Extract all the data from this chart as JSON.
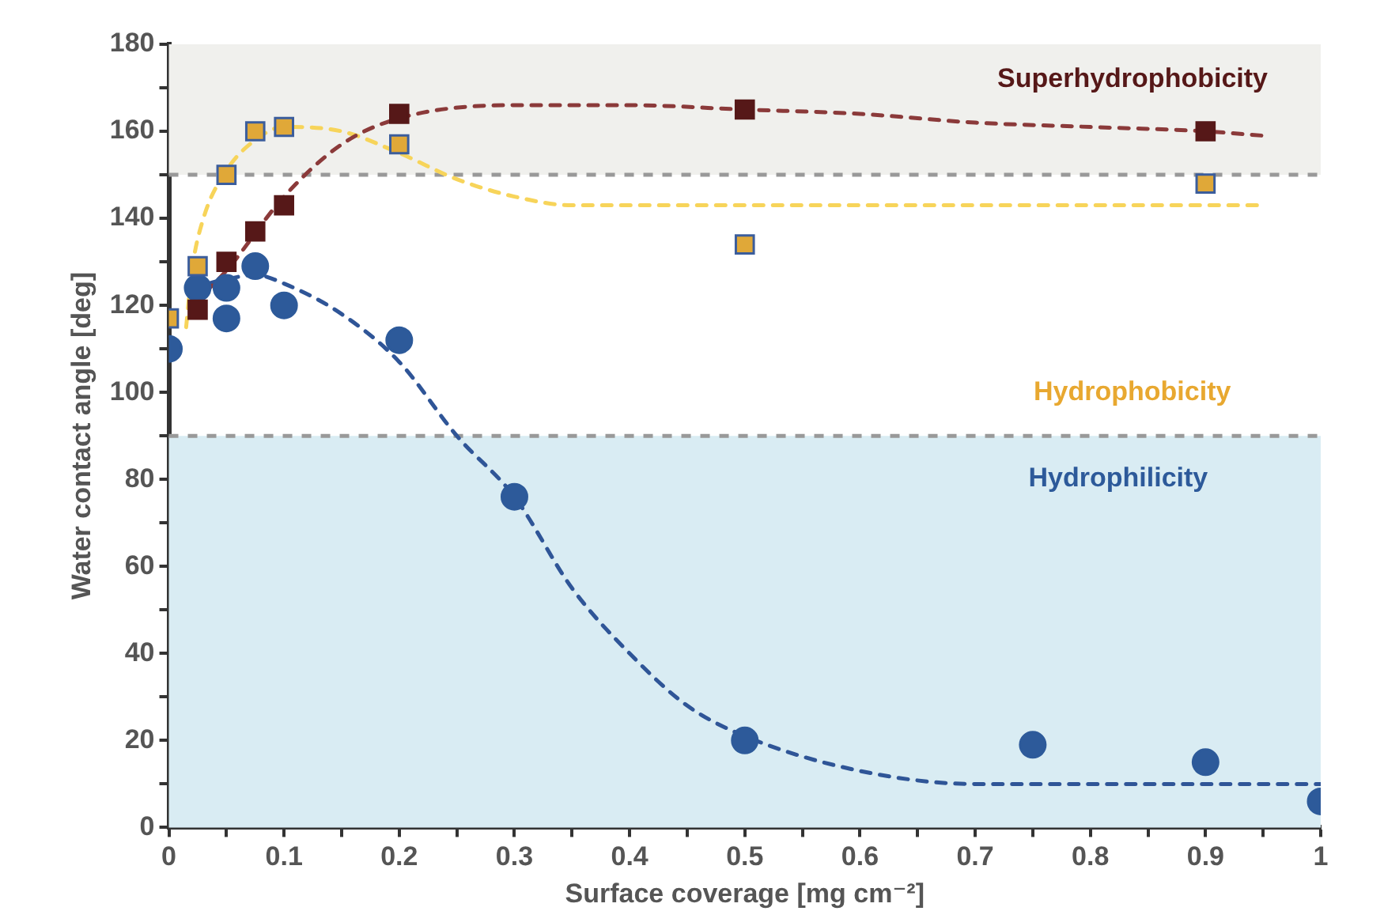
{
  "chart_data": {
    "type": "scatter",
    "xlabel": "Surface coverage [mg cm⁻²]",
    "ylabel": "Water contact angle [deg]",
    "xlim": [
      0,
      1
    ],
    "xticks": [
      0,
      {
        "value": 0.05,
        "label": null
      },
      0.1,
      {
        "value": 0.15,
        "label": null
      },
      0.2,
      {
        "value": 0.25,
        "label": null
      },
      0.3,
      {
        "value": 0.35,
        "label": null
      },
      0.4,
      {
        "value": 0.45,
        "label": null
      },
      0.5,
      {
        "value": 0.55,
        "label": null
      },
      0.6,
      {
        "value": 0.65,
        "label": null
      },
      0.7,
      {
        "value": 0.75,
        "label": null
      },
      0.8,
      {
        "value": 0.85,
        "label": null
      },
      0.9,
      {
        "value": 0.95,
        "label": null
      },
      1
    ],
    "ylim": [
      0,
      180
    ],
    "yticks": [
      0,
      {
        "value": 10,
        "label": null
      },
      20,
      {
        "value": 30,
        "label": null
      },
      40,
      {
        "value": 50,
        "label": null
      },
      60,
      {
        "value": 70,
        "label": null
      },
      80,
      {
        "value": 90,
        "label": null
      },
      100,
      {
        "value": 110,
        "label": null
      },
      120,
      {
        "value": 130,
        "label": null
      },
      140,
      {
        "value": 150,
        "label": null
      },
      160,
      {
        "value": 170,
        "label": null
      },
      180
    ],
    "grid": false,
    "legend": false,
    "series": [
      {
        "type": "scatter",
        "marker": "square",
        "color": "#561818",
        "x": [
          0.025,
          0.05,
          0.075,
          0.1,
          0.2,
          0.5,
          0.9
        ],
        "values": [
          119,
          130,
          137,
          143,
          164,
          165,
          160
        ]
      },
      {
        "type": "scatter",
        "marker": "square",
        "color": "#e0a838",
        "x": [
          0,
          0.025,
          0.05,
          0.075,
          0.1,
          0.2,
          0.5,
          0.9
        ],
        "values": [
          117,
          129,
          150,
          160,
          161,
          157,
          134,
          148
        ]
      },
      {
        "type": "scatter",
        "marker": "circle",
        "color": "#2d5a9a",
        "x": [
          0,
          0.025,
          0.05,
          0.05,
          0.075,
          0.1,
          0.2,
          0.3,
          0.5,
          0.75,
          0.9,
          1
        ],
        "values": [
          110,
          124,
          124,
          117,
          129,
          120,
          112,
          76,
          20,
          19,
          15,
          6
        ]
      },
      {
        "type": "line",
        "line_style": "dashed",
        "marker": "none",
        "color": "#8b3a3a",
        "x": [
          0.02,
          0.05,
          0.1,
          0.15,
          0.2,
          0.3,
          0.4,
          0.5,
          0.6,
          0.7,
          0.8,
          0.9,
          0.95
        ],
        "values": [
          120,
          128,
          145,
          157,
          163,
          166,
          166,
          165,
          164,
          162,
          161,
          160,
          159
        ]
      },
      {
        "type": "line",
        "line_style": "dashed",
        "marker": "none",
        "color": "#f7d45a",
        "x": [
          0.015,
          0.02,
          0.03,
          0.05,
          0.075,
          0.1,
          0.15,
          0.2,
          0.25,
          0.3,
          0.35,
          0.4,
          0.5,
          0.6,
          0.7,
          0.8,
          0.9,
          0.95
        ],
        "values": [
          115,
          128,
          140,
          151,
          158,
          161,
          160,
          155,
          149,
          145,
          143,
          143,
          143,
          143,
          143,
          143,
          143,
          143
        ]
      },
      {
        "type": "line",
        "line_style": "dashed",
        "marker": "none",
        "color": "#2f5597",
        "x": [
          0.02,
          0.05,
          0.075,
          0.1,
          0.15,
          0.2,
          0.25,
          0.3,
          0.35,
          0.4,
          0.45,
          0.5,
          0.6,
          0.7,
          0.8,
          0.9,
          1
        ],
        "values": [
          124,
          126,
          127,
          125,
          118,
          107,
          90,
          76,
          55,
          40,
          28,
          21,
          13,
          10,
          10,
          10,
          10
        ]
      }
    ],
    "bands": [
      {
        "axis": "y",
        "from": 150,
        "to": 180,
        "color": "#f0f0ed"
      },
      {
        "axis": "y",
        "from": 0,
        "to": 90,
        "color": "#d9ecf3"
      }
    ],
    "ref_lines": [
      {
        "axis": "y",
        "value": 150,
        "color": "#999999",
        "line_style": "dashed"
      },
      {
        "axis": "y",
        "value": 90,
        "color": "#999999",
        "line_style": "dashed"
      }
    ],
    "annotations": [
      "Superhydrophobicity",
      "Hydrophobicity",
      "Hydrophilicity"
    ]
  }
}
